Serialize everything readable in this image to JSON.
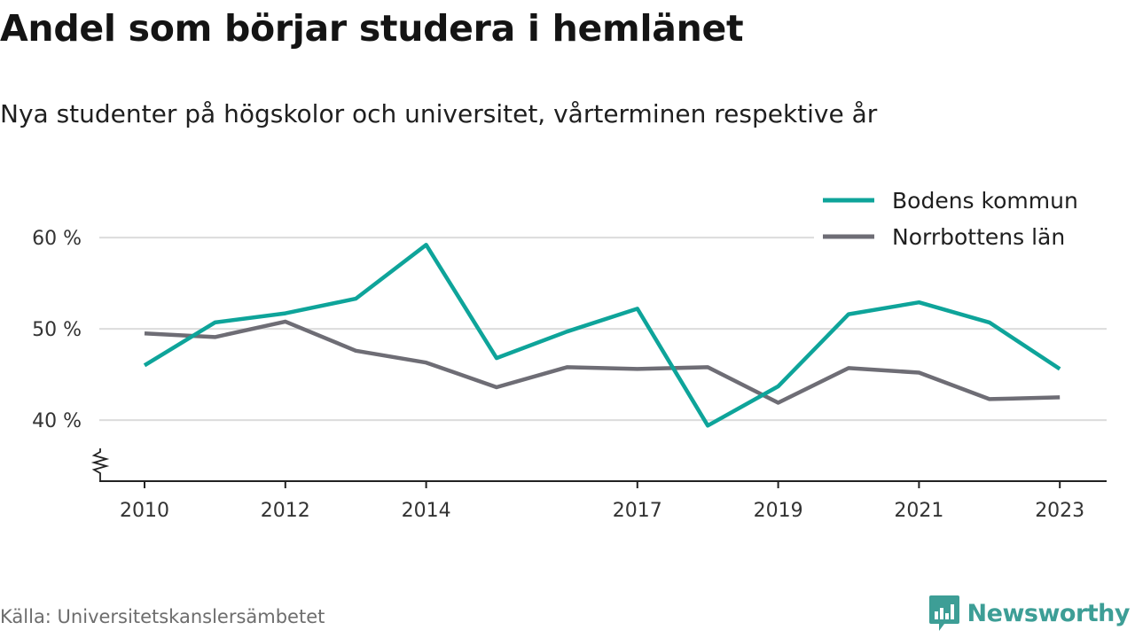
{
  "title": "Andel som börjar studera i hemlänet",
  "subtitle": "Nya studenter på högskolor och universitet, vårterminen respektive år",
  "source": "Källa: Universitetskanslersämbetet",
  "brand": {
    "name": "Newsworthy",
    "icon": "newsworthy-logo-icon",
    "color": "#3d9e96"
  },
  "chart_data": {
    "type": "line",
    "title": "Andel som börjar studera i hemlänet",
    "subtitle": "Nya studenter på högskolor och universitet, vårterminen respektive år",
    "x": [
      2010,
      2011,
      2012,
      2013,
      2014,
      2015,
      2016,
      2017,
      2018,
      2019,
      2020,
      2021,
      2022,
      2023
    ],
    "x_ticks": [
      2010,
      2012,
      2014,
      2017,
      2019,
      2021,
      2023
    ],
    "x_tick_labels": [
      "2010",
      "2012",
      "2014",
      "2017",
      "2019",
      "2021",
      "2023"
    ],
    "y_ticks": [
      40,
      50,
      60
    ],
    "y_tick_labels": [
      "40 %",
      "50 %",
      "60 %"
    ],
    "ylim": [
      33.5,
      62
    ],
    "y_axis_break": true,
    "grid": true,
    "legend_position": "top-right",
    "series": [
      {
        "name": "Bodens kommun",
        "color": "#0ea49a",
        "values": [
          46.0,
          50.7,
          51.7,
          53.3,
          59.2,
          46.8,
          49.7,
          52.2,
          39.4,
          43.7,
          51.6,
          52.9,
          50.7,
          45.6
        ]
      },
      {
        "name": "Norrbottens län",
        "color": "#6e6d75",
        "values": [
          49.5,
          49.1,
          50.8,
          47.6,
          46.3,
          43.6,
          45.8,
          45.6,
          45.8,
          41.9,
          45.7,
          45.2,
          42.3,
          42.5
        ]
      }
    ]
  }
}
